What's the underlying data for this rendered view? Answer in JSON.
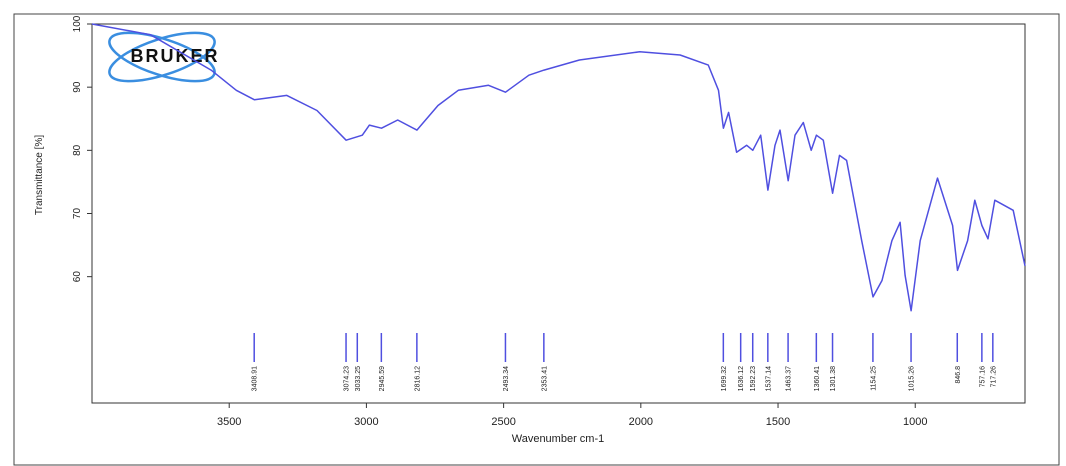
{
  "chart_data": {
    "type": "line",
    "logo": "BRUKER",
    "xlabel": "Wavenumber cm-1",
    "ylabel": "Transmittance [%]",
    "color": "#4f4fe0",
    "xlim": [
      4000,
      600
    ],
    "ylim": [
      40,
      100
    ],
    "xticks": [
      3500,
      3000,
      2500,
      2000,
      1500,
      1000
    ],
    "yticks": [
      60,
      70,
      80,
      90,
      100
    ],
    "x": [
      4000,
      3787,
      3566,
      3474,
      3408,
      3290,
      3180,
      3074,
      3015,
      2989,
      2945,
      2886,
      2816,
      2739,
      2665,
      2555,
      2493,
      2408,
      2353,
      2224,
      2004,
      1857,
      1754,
      1717,
      1699,
      1680,
      1651,
      1614,
      1592,
      1563,
      1537,
      1511,
      1493,
      1463,
      1438,
      1408,
      1379,
      1360,
      1335,
      1301,
      1276,
      1250,
      1195,
      1154,
      1121,
      1085,
      1055,
      1037,
      1015,
      982,
      919,
      864,
      846,
      809,
      783,
      757,
      735,
      710,
      643,
      600
    ],
    "values": [
      100,
      98.3,
      92.7,
      89.5,
      88,
      88.7,
      86.3,
      81.6,
      82.4,
      84,
      83.5,
      84.8,
      83.2,
      87.1,
      89.5,
      90.3,
      89.2,
      91.9,
      92.7,
      94.3,
      95.6,
      95.1,
      93.5,
      89.5,
      83.5,
      86,
      79.7,
      80.8,
      80,
      82.4,
      73.7,
      80.8,
      83.2,
      75.2,
      82.4,
      84.4,
      80,
      82.4,
      81.6,
      73.2,
      79.2,
      78.4,
      65.7,
      56.8,
      59.4,
      65.7,
      68.6,
      60.2,
      54.6,
      65.7,
      75.6,
      68.1,
      61,
      65.7,
      72.1,
      68.1,
      66,
      72.1,
      70.5,
      61.7
    ],
    "peaks": [
      3408.91,
      3074.23,
      3033.25,
      2945.59,
      2816.12,
      2493.34,
      2353.41,
      1699.32,
      1636.12,
      1592.23,
      1537.14,
      1463.37,
      1360.41,
      1301.38,
      1154.25,
      1015.26,
      846.8,
      757.16,
      717.26
    ]
  }
}
